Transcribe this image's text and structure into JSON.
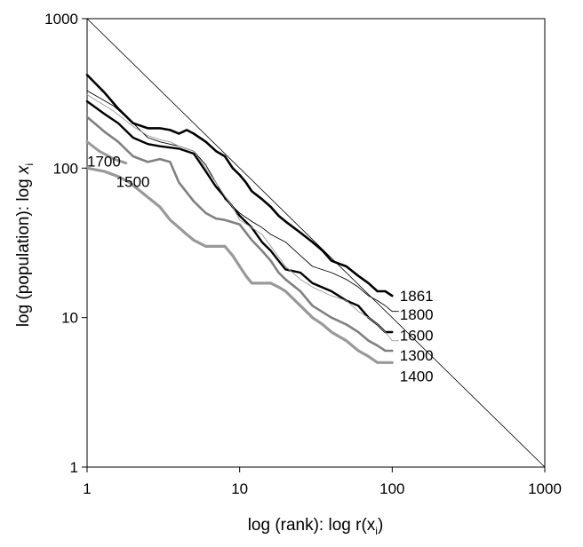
{
  "chart_data": {
    "type": "line",
    "xlabel_main": "log (rank): log r(x",
    "xlabel_sub": "i",
    "xlabel_end": ")",
    "ylabel_main": "log (population): log ",
    "ylabel_var": "x",
    "ylabel_sub": "i",
    "x_scale": "log",
    "y_scale": "log",
    "xlim": [
      1,
      1000
    ],
    "ylim": [
      1,
      1000
    ],
    "x_ticks": [
      {
        "value": 1,
        "label": "1"
      },
      {
        "value": 10,
        "label": "10"
      },
      {
        "value": 100,
        "label": "100"
      },
      {
        "value": 1000,
        "label": "1000"
      }
    ],
    "y_ticks": [
      {
        "value": 1,
        "label": "1"
      },
      {
        "value": 10,
        "label": "10"
      },
      {
        "value": 100,
        "label": "100"
      },
      {
        "value": 1000,
        "label": "1000"
      }
    ],
    "grid": false,
    "reference_line": {
      "x": [
        1,
        1000
      ],
      "y": [
        1000,
        1
      ]
    },
    "series": [
      {
        "name": "1861",
        "color": "#000000",
        "x": [
          1,
          1.3,
          1.6,
          2,
          2.5,
          3,
          3.5,
          4,
          4.5,
          5,
          6,
          7,
          8,
          9,
          10,
          11,
          12,
          14,
          16,
          18,
          20,
          25,
          30,
          35,
          40,
          50,
          60,
          70,
          80,
          90,
          100
        ],
        "y": [
          420,
          320,
          250,
          200,
          185,
          185,
          180,
          170,
          180,
          170,
          150,
          130,
          120,
          100,
          90,
          80,
          70,
          62,
          55,
          48,
          44,
          37,
          32,
          28,
          24,
          22,
          19,
          17,
          15,
          15,
          14
        ]
      },
      {
        "name": "1800",
        "color": "#000000",
        "x": [
          1,
          1.5,
          2,
          2.5,
          3,
          4,
          5,
          6,
          7,
          8,
          10,
          12,
          14,
          16,
          20,
          25,
          30,
          40,
          50,
          60,
          70,
          80,
          90,
          100,
          110
        ],
        "y": [
          330,
          260,
          200,
          160,
          150,
          140,
          130,
          105,
          80,
          62,
          50,
          44,
          40,
          36,
          32,
          26,
          22,
          20,
          18,
          16,
          14,
          13,
          12,
          11,
          11
        ]
      },
      {
        "name": "1600",
        "color": "#000000",
        "x": [
          1,
          1.3,
          1.6,
          2,
          2.5,
          3,
          4,
          5,
          6,
          7,
          8,
          9,
          10,
          12,
          14,
          16,
          18,
          20,
          25,
          30,
          40,
          50,
          60,
          70,
          80,
          90,
          100
        ],
        "y": [
          280,
          230,
          200,
          160,
          145,
          140,
          135,
          125,
          95,
          75,
          64,
          55,
          48,
          40,
          32,
          28,
          24,
          21,
          20,
          17,
          15,
          13,
          12,
          10,
          9,
          8,
          8
        ]
      },
      {
        "name": "1300",
        "color": "#999999",
        "x": [
          1,
          1.5,
          2,
          2.5,
          3,
          3.5,
          4,
          5,
          6,
          7,
          8,
          9,
          10,
          12,
          14,
          16,
          20,
          25,
          30,
          40,
          50,
          60,
          70,
          80,
          90,
          100,
          110
        ],
        "y": [
          310,
          240,
          190,
          165,
          155,
          150,
          140,
          130,
          100,
          80,
          65,
          55,
          45,
          40,
          36,
          30,
          22,
          18,
          16,
          14,
          13,
          11,
          10,
          9,
          8,
          7,
          7
        ]
      },
      {
        "name": "1700",
        "color": "#808080",
        "x": [
          1,
          1.3,
          1.6,
          2,
          2.5,
          3,
          3.5,
          4,
          5,
          6,
          7,
          8,
          10,
          12,
          14,
          16,
          18,
          20,
          25,
          30,
          40,
          50,
          60,
          70,
          80,
          90,
          100
        ],
        "y": [
          220,
          175,
          150,
          120,
          110,
          115,
          110,
          80,
          60,
          50,
          46,
          45,
          42,
          33,
          28,
          24,
          20,
          18,
          15,
          12,
          10,
          9,
          8,
          7,
          6.5,
          6,
          6
        ]
      },
      {
        "name": "1500",
        "color": "#999999",
        "x": [
          1,
          1.2,
          1.5,
          1.8
        ],
        "y": [
          150,
          130,
          115,
          108
        ]
      },
      {
        "name": "1400",
        "color": "#999999",
        "x": [
          1,
          1.3,
          1.6,
          1.9,
          3,
          3.5,
          4,
          4.5,
          5,
          6,
          7,
          8,
          9,
          10,
          11,
          12,
          14,
          16,
          18,
          20,
          25,
          30,
          35,
          40,
          50,
          60,
          70,
          80,
          90,
          100
        ],
        "y": [
          100,
          95,
          88,
          80,
          55,
          45,
          40,
          36,
          33,
          30,
          30,
          30,
          26,
          22,
          19,
          17,
          17,
          17,
          16,
          15,
          12,
          10,
          9,
          8,
          7,
          6,
          5.5,
          5,
          5,
          5
        ]
      }
    ],
    "labels": [
      {
        "text": "1861",
        "x": 112,
        "y": 14
      },
      {
        "text": "1800",
        "x": 112,
        "y": 10.5
      },
      {
        "text": "1600",
        "x": 112,
        "y": 7.6
      },
      {
        "text": "1300",
        "x": 112,
        "y": 5.6
      },
      {
        "text": "1400",
        "x": 112,
        "y": 4.05
      },
      {
        "text": "1700",
        "x": 1.0,
        "y": 111
      },
      {
        "text": "1500",
        "x": 1.55,
        "y": 81
      }
    ]
  }
}
